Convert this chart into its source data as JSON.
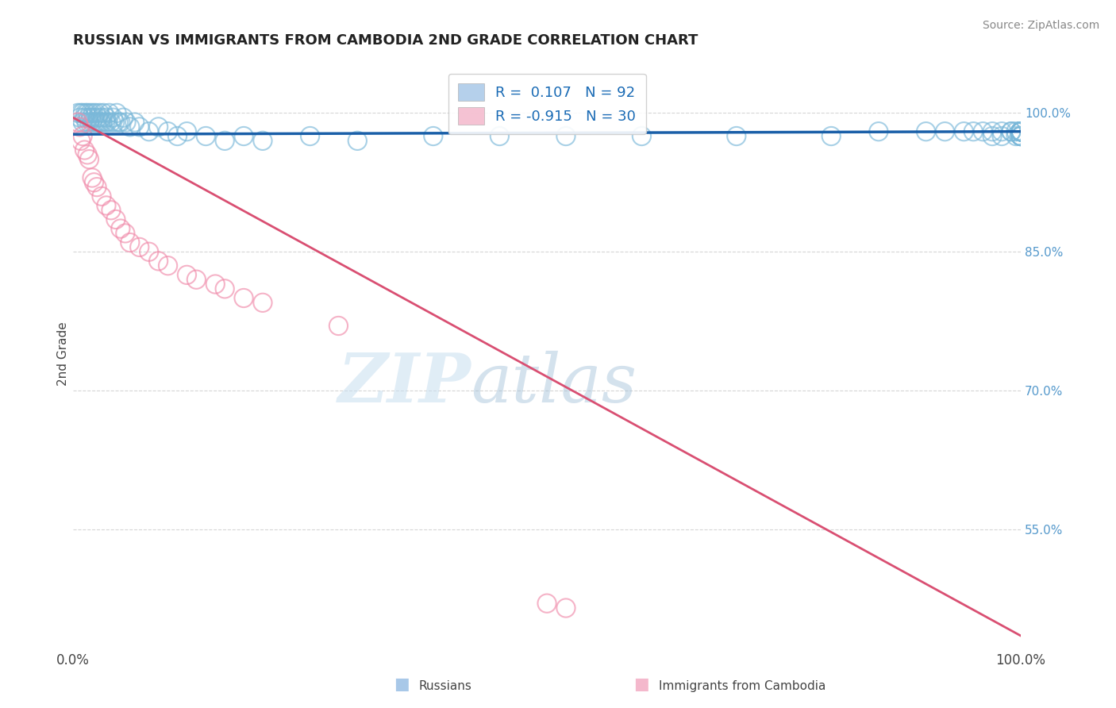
{
  "title": "RUSSIAN VS IMMIGRANTS FROM CAMBODIA 2ND GRADE CORRELATION CHART",
  "source": "Source: ZipAtlas.com",
  "ylabel": "2nd Grade",
  "xlim": [
    0.0,
    1.0
  ],
  "ylim": [
    0.42,
    1.06
  ],
  "right_yticks": [
    1.0,
    0.85,
    0.7,
    0.55
  ],
  "right_ytick_labels": [
    "100.0%",
    "85.0%",
    "70.0%",
    "55.0%"
  ],
  "legend_r1": "R =  0.107   N = 92",
  "legend_r2": "R = -0.915   N = 30",
  "footer_label1": "Russians",
  "footer_label2": "Immigrants from Cambodia",
  "blue_color": "#7ab8d9",
  "pink_color": "#f08baa",
  "blue_line_color": "#1a5fa8",
  "pink_line_color": "#d94f72",
  "legend_blue": "#a8c8e8",
  "legend_pink": "#f4b8cc",
  "blue_x": [
    0.005,
    0.007,
    0.008,
    0.01,
    0.01,
    0.012,
    0.013,
    0.014,
    0.015,
    0.016,
    0.017,
    0.018,
    0.019,
    0.02,
    0.021,
    0.022,
    0.023,
    0.024,
    0.025,
    0.026,
    0.027,
    0.028,
    0.029,
    0.03,
    0.031,
    0.032,
    0.034,
    0.035,
    0.036,
    0.038,
    0.04,
    0.042,
    0.044,
    0.046,
    0.048,
    0.05,
    0.053,
    0.056,
    0.06,
    0.065,
    0.07,
    0.08,
    0.09,
    0.1,
    0.11,
    0.12,
    0.14,
    0.16,
    0.18,
    0.2,
    0.25,
    0.3,
    0.38,
    0.45,
    0.52,
    0.6,
    0.7,
    0.8,
    0.85,
    0.9,
    0.92,
    0.94,
    0.95,
    0.96,
    0.97,
    0.97,
    0.98,
    0.98,
    0.99,
    0.99,
    0.995,
    0.995,
    1.0,
    1.0,
    1.0,
    1.0,
    1.0,
    1.0,
    1.0,
    1.0,
    1.0,
    1.0,
    1.0,
    1.0,
    1.0,
    1.0,
    1.0,
    1.0,
    1.0,
    1.0,
    1.0,
    1.0
  ],
  "blue_y": [
    1.0,
    0.995,
    1.0,
    0.99,
    1.0,
    0.995,
    1.0,
    0.99,
    1.0,
    0.995,
    0.99,
    1.0,
    0.995,
    0.99,
    1.0,
    0.995,
    0.99,
    1.0,
    0.99,
    0.995,
    0.99,
    1.0,
    0.99,
    0.995,
    0.99,
    1.0,
    0.99,
    0.995,
    0.99,
    1.0,
    0.99,
    0.995,
    0.99,
    1.0,
    0.99,
    0.99,
    0.995,
    0.99,
    0.985,
    0.99,
    0.985,
    0.98,
    0.985,
    0.98,
    0.975,
    0.98,
    0.975,
    0.97,
    0.975,
    0.97,
    0.975,
    0.97,
    0.975,
    0.975,
    0.975,
    0.975,
    0.975,
    0.975,
    0.98,
    0.98,
    0.98,
    0.98,
    0.98,
    0.98,
    0.98,
    0.975,
    0.98,
    0.975,
    0.98,
    0.98,
    0.98,
    0.975,
    0.98,
    0.98,
    0.98,
    0.98,
    0.98,
    0.98,
    0.98,
    0.975,
    0.98,
    0.98,
    0.98,
    0.975,
    0.98,
    0.98,
    0.98,
    0.98,
    0.975,
    0.98,
    0.975,
    0.98
  ],
  "pink_x": [
    0.005,
    0.007,
    0.008,
    0.01,
    0.012,
    0.015,
    0.017,
    0.02,
    0.022,
    0.025,
    0.03,
    0.035,
    0.04,
    0.045,
    0.05,
    0.055,
    0.06,
    0.07,
    0.08,
    0.09,
    0.1,
    0.12,
    0.13,
    0.15,
    0.16,
    0.18,
    0.2,
    0.28,
    0.5,
    0.52
  ],
  "pink_y": [
    0.99,
    0.985,
    0.97,
    0.975,
    0.96,
    0.955,
    0.95,
    0.93,
    0.925,
    0.92,
    0.91,
    0.9,
    0.895,
    0.885,
    0.875,
    0.87,
    0.86,
    0.855,
    0.85,
    0.84,
    0.835,
    0.825,
    0.82,
    0.815,
    0.81,
    0.8,
    0.795,
    0.77,
    0.47,
    0.465
  ],
  "pink_trend_x0": 0.0,
  "pink_trend_y0": 0.995,
  "pink_trend_x1": 1.0,
  "pink_trend_y1": 0.435,
  "blue_trend_x0": 0.0,
  "blue_trend_y0": 0.977,
  "blue_trend_x1": 1.0,
  "blue_trend_y1": 0.98,
  "watermark_zip": "ZIP",
  "watermark_atlas": "atlas",
  "background": "#ffffff",
  "grid_color": "#cccccc"
}
